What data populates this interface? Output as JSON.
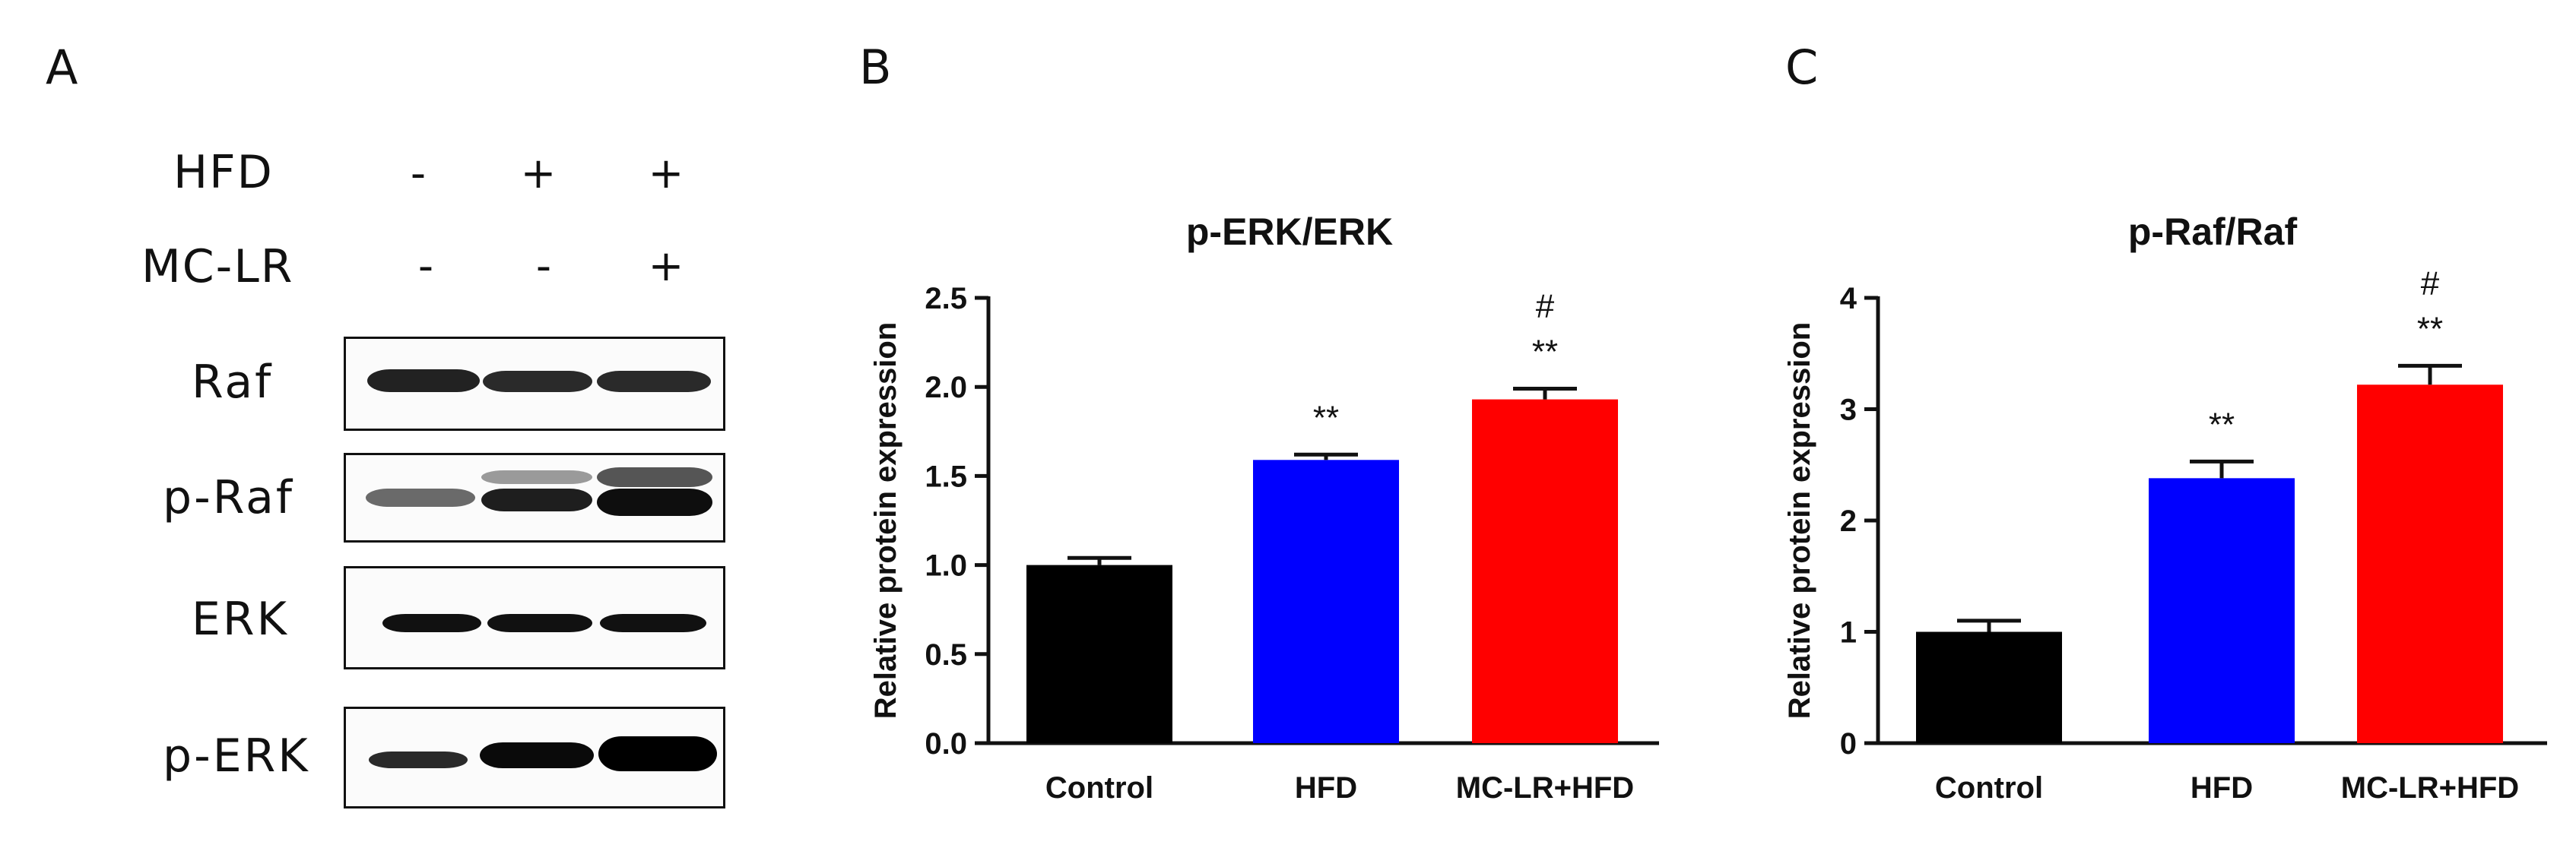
{
  "panels": {
    "a": "A",
    "b": "B",
    "c": "C"
  },
  "western_blot": {
    "treatments": [
      {
        "label": "HFD",
        "signs": [
          "-",
          "+",
          "+"
        ]
      },
      {
        "label": "MC-LR",
        "signs": [
          "-",
          "-",
          "+"
        ]
      }
    ],
    "blots": [
      {
        "label": "Raf"
      },
      {
        "label": "p-Raf"
      },
      {
        "label": "ERK"
      },
      {
        "label": "p-ERK"
      }
    ]
  },
  "chart_data": [
    {
      "type": "bar",
      "title": "p-ERK/ERK",
      "xlabel": "",
      "ylabel": "Relative protein expression",
      "categories": [
        "Control",
        "HFD",
        "MC-LR+HFD"
      ],
      "values": [
        1.0,
        1.59,
        1.93
      ],
      "errors": [
        0.04,
        0.03,
        0.06
      ],
      "annotations": [
        [],
        [
          "**"
        ],
        [
          "**",
          "#"
        ]
      ],
      "colors": [
        "#000000",
        "#0000ff",
        "#ff0000"
      ],
      "ylim": [
        0,
        2.5
      ],
      "yticks": [
        "0.0",
        "0.5",
        "1.0",
        "1.5",
        "2.0",
        "2.5"
      ],
      "ytick_values": [
        0,
        0.5,
        1.0,
        1.5,
        2.0,
        2.5
      ],
      "grid": false
    },
    {
      "type": "bar",
      "title": "p-Raf/Raf",
      "xlabel": "",
      "ylabel": "Relative protein expression",
      "categories": [
        "Control",
        "HFD",
        "MC-LR+HFD"
      ],
      "values": [
        1.0,
        2.38,
        3.22
      ],
      "errors": [
        0.1,
        0.15,
        0.17
      ],
      "annotations": [
        [],
        [
          "**"
        ],
        [
          "**",
          "#"
        ]
      ],
      "colors": [
        "#000000",
        "#0000ff",
        "#ff0000"
      ],
      "ylim": [
        0,
        4
      ],
      "yticks": [
        "0",
        "1",
        "2",
        "3",
        "4"
      ],
      "ytick_values": [
        0,
        1,
        2,
        3,
        4
      ],
      "grid": false
    }
  ]
}
